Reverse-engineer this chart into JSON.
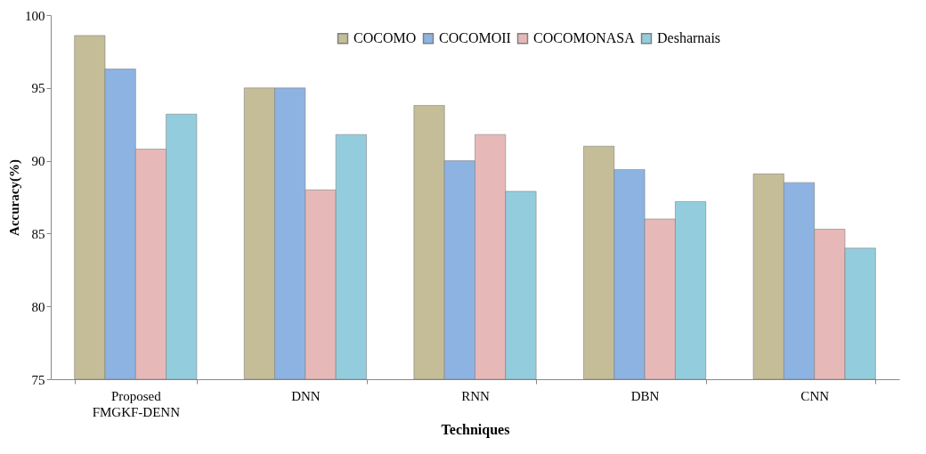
{
  "chart_data": {
    "type": "bar",
    "xlabel": "Techniques",
    "ylabel": "Accuracy(%)",
    "categories": [
      "Proposed FMGKF-DENN",
      "DNN",
      "RNN",
      "DBN",
      "CNN"
    ],
    "series": [
      {
        "name": "COCOMO",
        "color": "#c4bd97",
        "values": [
          98.6,
          95.0,
          93.8,
          91.0,
          89.1
        ]
      },
      {
        "name": "COCOMOII",
        "color": "#8db3e2",
        "values": [
          96.3,
          95.0,
          90.0,
          89.4,
          88.5
        ]
      },
      {
        "name": "COCOMONASA",
        "color": "#e6b9b8",
        "values": [
          90.8,
          88.0,
          91.8,
          86.0,
          85.3
        ]
      },
      {
        "name": "Desharnais",
        "color": "#93cddd",
        "values": [
          93.2,
          91.8,
          87.9,
          87.2,
          84.0
        ]
      }
    ],
    "ylim": [
      75,
      100
    ],
    "yticks": [
      75,
      80,
      85,
      90,
      95,
      100
    ],
    "grid": false,
    "legend": "top"
  }
}
